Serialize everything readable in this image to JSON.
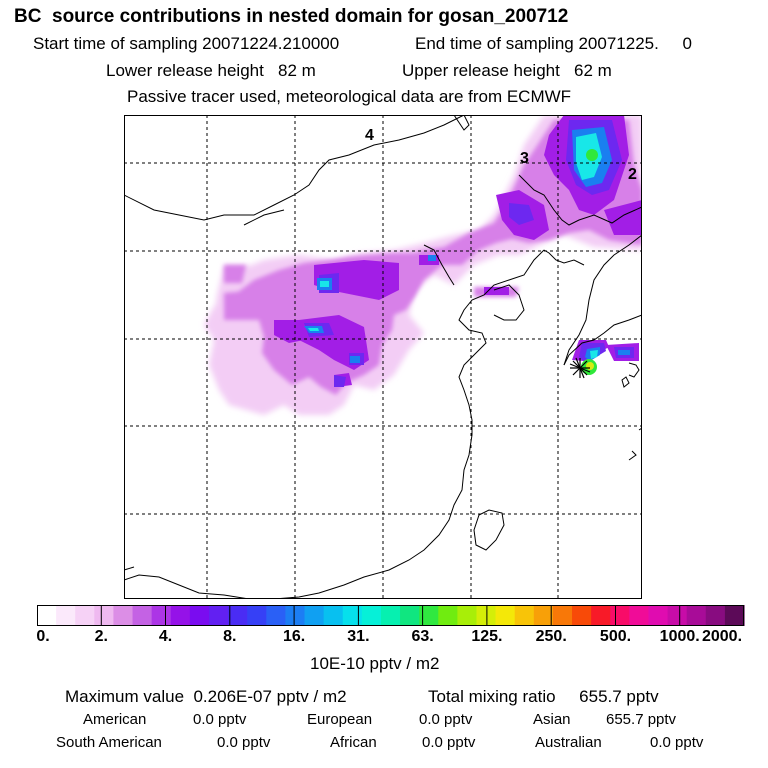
{
  "header": {
    "title": "BC  source contributions in nested domain for gosan_200712",
    "start_label": "Start time of sampling 20071224.210000",
    "end_label": "End time of sampling 20071225.     0",
    "lower_release": "Lower release height   82 m",
    "upper_release": "Upper release height   62 m",
    "tracer_note": "Passive tracer used, meteorological data are from ECMWF"
  },
  "map": {
    "grid_labels": [
      "4",
      "3",
      "2"
    ],
    "receptor_marker": "star-marker",
    "plume_colors": {
      "light": "#f3cdf5",
      "mid": "#d780e8",
      "strong": "#a21ee6",
      "deep": "#6d28f0",
      "blue": "#1a7ff0",
      "cyan": "#18e7e8",
      "green": "#30e83a",
      "yellow": "#d8ec10"
    }
  },
  "colorbar": {
    "tick_labels": [
      "0.",
      "2.",
      "4.",
      "8.",
      "16.",
      "31.",
      "63.",
      "125.",
      "250.",
      "500.",
      "1000.",
      "2000."
    ],
    "unit": "10E-10 pptv / m2",
    "colors": [
      "#ffffff",
      "#fbe9fb",
      "#f6d2f6",
      "#efb9f0",
      "#dc8ee6",
      "#c462e4",
      "#ac35e6",
      "#9512e8",
      "#7a0cf0",
      "#6220f2",
      "#4a2cf4",
      "#3640f6",
      "#2a60f6",
      "#1c7ef4",
      "#10a0f2",
      "#08c0f0",
      "#06e0ec",
      "#06f0d8",
      "#06f0b0",
      "#10e680",
      "#30e840",
      "#70ec10",
      "#a8ee08",
      "#d4ee08",
      "#f4e808",
      "#f8c408",
      "#f8a008",
      "#f87808",
      "#f84a08",
      "#f81a28",
      "#f80c68",
      "#f00c98",
      "#e00cb0",
      "#c80ca8",
      "#a80c98",
      "#880c80",
      "#5c0a58"
    ]
  },
  "footer": {
    "max_value": "Maximum value  0.206E-07 pptv / m2",
    "total_mixing": "Total mixing ratio     655.7 pptv",
    "american": "American",
    "american_val": "0.0 pptv",
    "european": "European",
    "european_val": "0.0 pptv",
    "asian": "Asian",
    "asian_val": "655.7 pptv",
    "south_american": "South American",
    "south_american_val": "0.0 pptv",
    "african": "African",
    "african_val": "0.0 pptv",
    "australian": "Australian",
    "australian_val": "0.0 pptv"
  }
}
